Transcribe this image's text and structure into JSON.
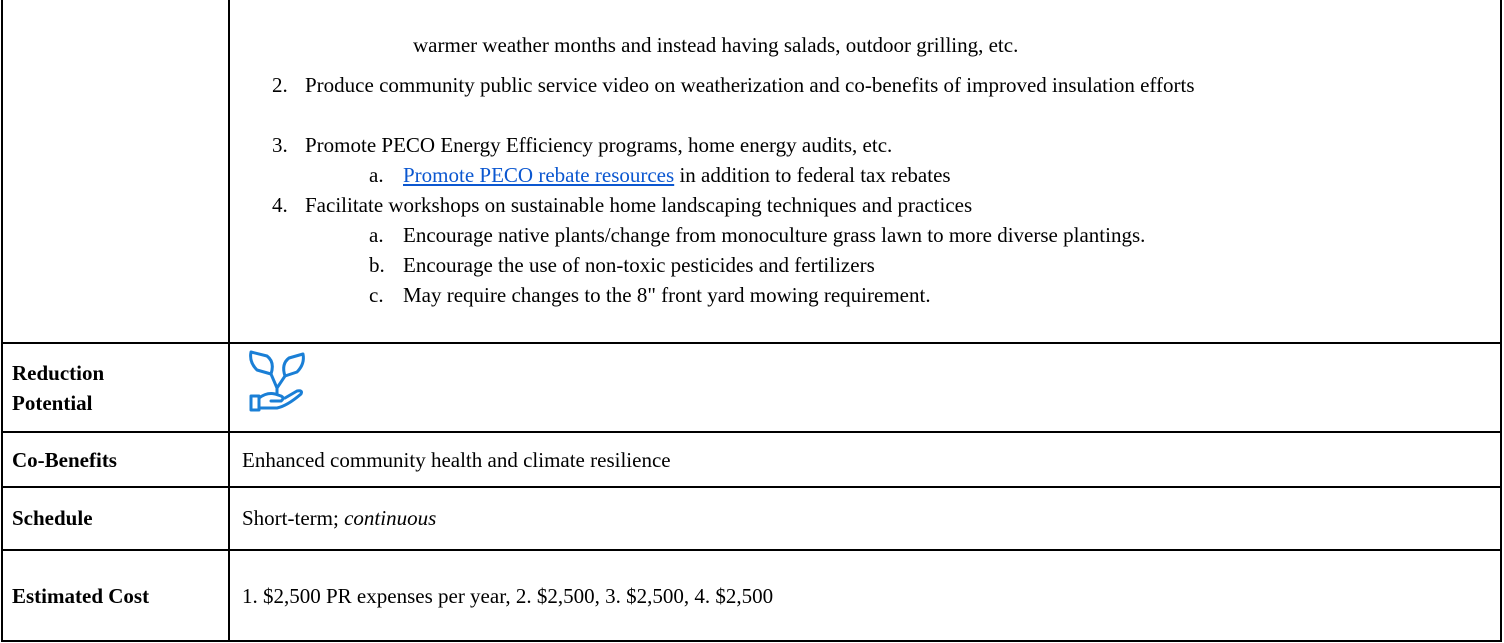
{
  "table": {
    "rows": [
      {
        "continuation": "warmer weather months and instead having salads, outdoor grilling, etc.",
        "items": [
          {
            "marker": "2.",
            "text": "Produce community public service video on weatherization and co-benefits of improved insulation efforts"
          },
          {
            "marker": "3.",
            "text": "Promote PECO Energy Efficiency programs, home energy audits, etc.",
            "subitems": [
              {
                "marker": "a.",
                "link": "Promote PECO rebate resources",
                "text": "in addition to federal tax rebates"
              }
            ]
          },
          {
            "marker": "4.",
            "text": "Facilitate workshops on sustainable home landscaping techniques and practices",
            "subitems": [
              {
                "marker": "a.",
                "text": "Encourage native plants/change from monoculture grass lawn to more diverse plantings."
              },
              {
                "marker": "b.",
                "text": "Encourage the use of non-toxic pesticides and fertilizers"
              },
              {
                "marker": "c.",
                "text": "May require changes to the 8\" front yard mowing requirement."
              }
            ]
          }
        ]
      },
      {
        "label": "Reduction Potential"
      },
      {
        "label": "Co-Benefits",
        "content": "Enhanced community health and climate resilience"
      },
      {
        "label": "Schedule",
        "content": "Short-term;",
        "emphasis": "continuous"
      },
      {
        "label": "Estimated Cost",
        "content": "1. $2,500 PR expenses per year, 2. $2,500, 3. $2,500, 4. $2,500"
      }
    ]
  }
}
